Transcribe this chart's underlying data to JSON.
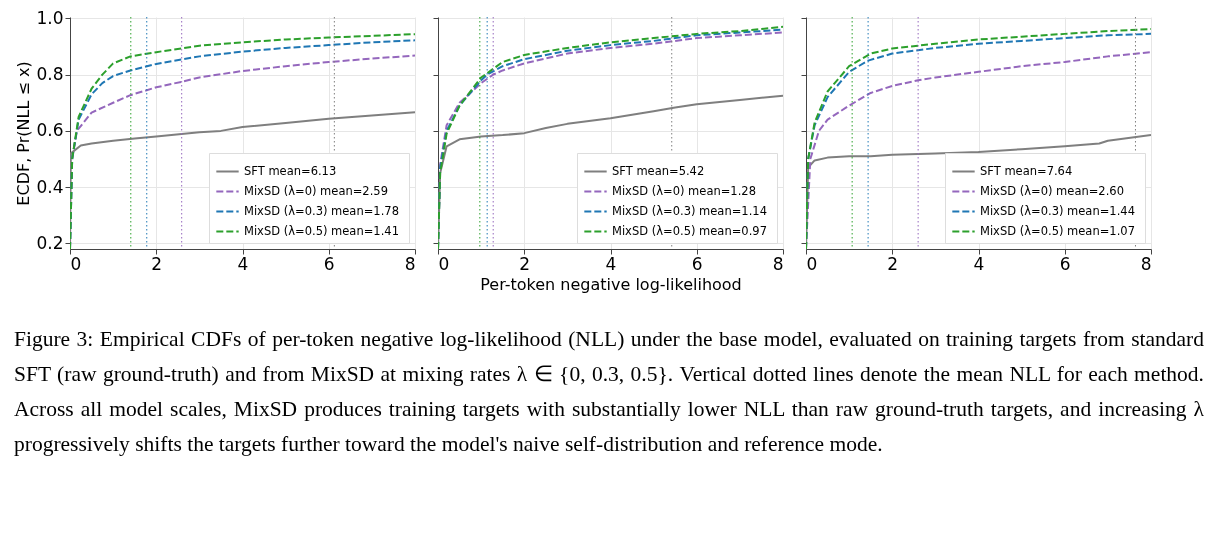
{
  "chart_data": [
    {
      "type": "line",
      "ylabel": "ECDF,  Pr(NLL ≤ x)",
      "xlim": [
        0,
        8
      ],
      "ylim": [
        0.18,
        1.005
      ],
      "xticks": [
        0,
        2,
        4,
        6,
        8
      ],
      "yticks": [
        0.2,
        0.4,
        0.6,
        0.8,
        {
          "value": 1.0,
          "label": "1.0"
        }
      ],
      "grid": true,
      "legend": "bottom right",
      "annotations": [
        "Figure 3: Empirical CDFs of per-token negative log-likelihood (NLL) under the base model, evaluated on training targets from standard SFT (raw ground-truth) and from MixSD at mixing rates λ ∈ {0, 0.3, 0.5}. Vertical dotted lines denote the mean NLL for each method. Across all model scales, MixSD produces training targets with substantially lower NLL than raw ground-truth targets, and increasing λ progressively shifts the targets further toward the model's naive self-distribution and reference mode."
      ],
      "ref_lines": [
        {
          "axis": "x",
          "value": 6.13,
          "color": "#7f7f7f",
          "line_style": "dotted"
        },
        {
          "axis": "x",
          "value": 2.59,
          "color": "#9467bd",
          "line_style": "dotted"
        },
        {
          "axis": "x",
          "value": 1.78,
          "color": "#1f77b4",
          "line_style": "dotted"
        },
        {
          "axis": "x",
          "value": 1.41,
          "color": "#2ca02c",
          "line_style": "dotted"
        }
      ],
      "series": [
        {
          "name": "SFT  mean=6.13",
          "color": "#7f7f7f",
          "line_style": "solid",
          "x": [
            0,
            0.02,
            0.25,
            0.5,
            1,
            1.5,
            2,
            3,
            3.5,
            4,
            5,
            6,
            7,
            8
          ],
          "values": [
            0.18,
            0.52,
            0.548,
            0.555,
            0.565,
            0.573,
            0.58,
            0.595,
            0.6,
            0.614,
            0.628,
            0.643,
            0.655,
            0.666
          ]
        },
        {
          "name": "MixSD (λ=0)  mean=2.59",
          "color": "#9467bd",
          "line_style": "dashed",
          "x": [
            0,
            0.05,
            0.16,
            0.5,
            1,
            1.4,
            2,
            2.6,
            3,
            4,
            5,
            6,
            7,
            8
          ],
          "values": [
            0.18,
            0.5,
            0.6,
            0.665,
            0.7,
            0.727,
            0.755,
            0.775,
            0.79,
            0.813,
            0.83,
            0.845,
            0.857,
            0.868
          ]
        },
        {
          "name": "MixSD (λ=0.3)  mean=1.78",
          "color": "#1f77b4",
          "line_style": "dashed",
          "x": [
            0,
            0.05,
            0.2,
            0.5,
            0.75,
            1,
            1.4,
            2,
            3,
            4,
            5,
            6,
            7,
            8
          ],
          "values": [
            0.18,
            0.5,
            0.64,
            0.73,
            0.77,
            0.795,
            0.815,
            0.838,
            0.865,
            0.882,
            0.895,
            0.905,
            0.915,
            0.922
          ]
        },
        {
          "name": "MixSD (λ=0.5)  mean=1.41",
          "color": "#2ca02c",
          "line_style": "dashed",
          "x": [
            0,
            0.05,
            0.2,
            0.5,
            0.75,
            1,
            1.4,
            2,
            3,
            4,
            5,
            6,
            7,
            8
          ],
          "values": [
            0.18,
            0.5,
            0.65,
            0.75,
            0.8,
            0.84,
            0.865,
            0.88,
            0.903,
            0.915,
            0.925,
            0.932,
            0.938,
            0.944
          ]
        }
      ]
    },
    {
      "type": "line",
      "xlabel": "Per-token negative log-likelihood",
      "xlim": [
        0,
        8
      ],
      "ylim": [
        0.18,
        1.005
      ],
      "xticks": [
        0,
        2,
        4,
        6,
        8
      ],
      "yticks": [
        0.2,
        0.4,
        0.6,
        0.8,
        1.0
      ],
      "grid": true,
      "legend": "bottom right",
      "tick_labels": "x",
      "ref_lines": [
        {
          "axis": "x",
          "value": 5.42,
          "color": "#7f7f7f",
          "line_style": "dotted"
        },
        {
          "axis": "x",
          "value": 1.28,
          "color": "#9467bd",
          "line_style": "dotted"
        },
        {
          "axis": "x",
          "value": 1.14,
          "color": "#1f77b4",
          "line_style": "dotted"
        },
        {
          "axis": "x",
          "value": 0.97,
          "color": "#2ca02c",
          "line_style": "dotted"
        }
      ],
      "series": [
        {
          "name": "SFT  mean=5.42",
          "color": "#7f7f7f",
          "line_style": "solid",
          "x": [
            0,
            0.05,
            0.2,
            0.5,
            1,
            1.5,
            2,
            2.5,
            3,
            4,
            5,
            5.5,
            6,
            7,
            8
          ],
          "values": [
            0.18,
            0.45,
            0.545,
            0.57,
            0.58,
            0.585,
            0.592,
            0.61,
            0.625,
            0.645,
            0.67,
            0.683,
            0.695,
            0.71,
            0.725
          ]
        },
        {
          "name": "MixSD (λ=0)  mean=1.28",
          "color": "#9467bd",
          "line_style": "dashed",
          "x": [
            0,
            0.05,
            0.2,
            0.5,
            1,
            1.28,
            1.5,
            2,
            3,
            4,
            5,
            6,
            7,
            8
          ],
          "values": [
            0.18,
            0.48,
            0.62,
            0.7,
            0.77,
            0.8,
            0.815,
            0.84,
            0.875,
            0.895,
            0.91,
            0.93,
            0.94,
            0.95
          ]
        },
        {
          "name": "MixSD (λ=0.3)  mean=1.14",
          "color": "#1f77b4",
          "line_style": "dashed",
          "x": [
            0,
            0.05,
            0.2,
            0.5,
            1,
            1.14,
            1.5,
            2,
            3,
            4,
            5,
            6,
            7,
            8
          ],
          "values": [
            0.18,
            0.47,
            0.6,
            0.69,
            0.78,
            0.8,
            0.83,
            0.855,
            0.885,
            0.905,
            0.92,
            0.94,
            0.95,
            0.96
          ]
        },
        {
          "name": "MixSD (λ=0.5)  mean=0.97",
          "color": "#2ca02c",
          "line_style": "dashed",
          "x": [
            0,
            0.05,
            0.2,
            0.5,
            1,
            1.5,
            2,
            3,
            4,
            5,
            6,
            7,
            8
          ],
          "values": [
            0.18,
            0.45,
            0.59,
            0.69,
            0.79,
            0.845,
            0.87,
            0.895,
            0.915,
            0.93,
            0.945,
            0.955,
            0.97
          ]
        }
      ]
    },
    {
      "type": "line",
      "xlim": [
        0,
        8
      ],
      "ylim": [
        0.18,
        1.005
      ],
      "xticks": [
        0,
        2,
        4,
        6,
        8
      ],
      "yticks": [
        0.2,
        0.4,
        0.6,
        0.8,
        1.0
      ],
      "grid": true,
      "legend": "bottom right",
      "tick_labels": "x",
      "ref_lines": [
        {
          "axis": "x",
          "value": 7.64,
          "color": "#7f7f7f",
          "line_style": "dotted"
        },
        {
          "axis": "x",
          "value": 2.6,
          "color": "#9467bd",
          "line_style": "dotted"
        },
        {
          "axis": "x",
          "value": 1.44,
          "color": "#1f77b4",
          "line_style": "dotted"
        },
        {
          "axis": "x",
          "value": 1.07,
          "color": "#2ca02c",
          "line_style": "dotted"
        }
      ],
      "series": [
        {
          "name": "SFT  mean=7.64",
          "color": "#7f7f7f",
          "line_style": "solid",
          "x": [
            0,
            0.05,
            0.2,
            0.5,
            1,
            1.5,
            2,
            3,
            4,
            5,
            6,
            6.8,
            7,
            8
          ],
          "values": [
            0.18,
            0.47,
            0.495,
            0.505,
            0.51,
            0.51,
            0.515,
            0.52,
            0.525,
            0.535,
            0.545,
            0.555,
            0.565,
            0.585
          ]
        },
        {
          "name": "MixSD (λ=0)  mean=2.60",
          "color": "#9467bd",
          "line_style": "dashed",
          "x": [
            0,
            0.1,
            0.3,
            0.5,
            1,
            1.5,
            2,
            2.6,
            3,
            4,
            5,
            6,
            7,
            8
          ],
          "values": [
            0.18,
            0.5,
            0.6,
            0.64,
            0.69,
            0.735,
            0.76,
            0.78,
            0.79,
            0.81,
            0.83,
            0.845,
            0.865,
            0.88
          ]
        },
        {
          "name": "MixSD (λ=0.3)  mean=1.44",
          "color": "#1f77b4",
          "line_style": "dashed",
          "x": [
            0,
            0.05,
            0.2,
            0.5,
            1,
            1.44,
            2,
            3,
            4,
            5,
            6,
            7,
            8
          ],
          "values": [
            0.18,
            0.5,
            0.62,
            0.72,
            0.81,
            0.85,
            0.875,
            0.895,
            0.91,
            0.92,
            0.93,
            0.94,
            0.945
          ]
        },
        {
          "name": "MixSD (λ=0.5)  mean=1.07",
          "color": "#2ca02c",
          "line_style": "dashed",
          "x": [
            0,
            0.05,
            0.2,
            0.5,
            1,
            1.5,
            2,
            3,
            4,
            5,
            6,
            7,
            8
          ],
          "values": [
            0.18,
            0.5,
            0.63,
            0.74,
            0.83,
            0.875,
            0.893,
            0.91,
            0.925,
            0.935,
            0.945,
            0.955,
            0.962
          ]
        }
      ]
    }
  ]
}
